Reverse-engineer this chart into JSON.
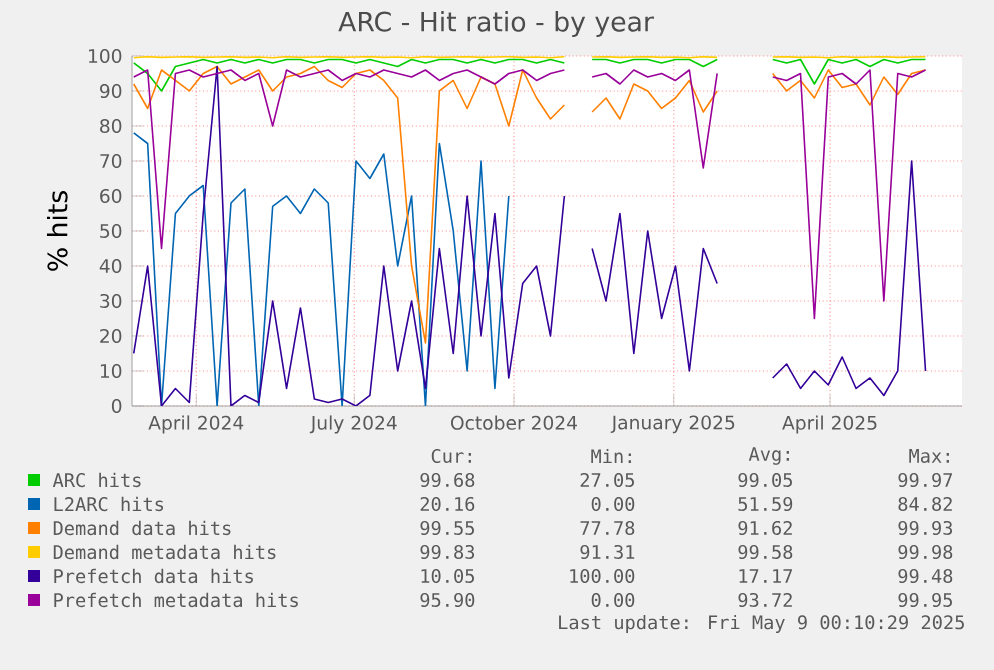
{
  "chart_data": {
    "type": "line",
    "title": "ARC - Hit ratio - by year",
    "ylabel": "% hits",
    "x": [
      "2024-02-25",
      "2024-03-04",
      "2024-03-12",
      "2024-03-20",
      "2024-03-28",
      "2024-04-05",
      "2024-04-13",
      "2024-04-21",
      "2024-04-29",
      "2024-05-07",
      "2024-05-15",
      "2024-05-23",
      "2024-05-31",
      "2024-06-08",
      "2024-06-16",
      "2024-06-24",
      "2024-07-02",
      "2024-07-10",
      "2024-07-18",
      "2024-07-26",
      "2024-08-03",
      "2024-08-11",
      "2024-08-19",
      "2024-08-27",
      "2024-09-04",
      "2024-09-12",
      "2024-09-20",
      "2024-09-28",
      "2024-10-06",
      "2024-10-14",
      "2024-10-22",
      "2024-10-30",
      "2024-11-07",
      "2024-11-15",
      "2024-11-23",
      "2024-12-01",
      "2024-12-09",
      "2024-12-17",
      "2024-12-25",
      "2025-01-02",
      "2025-01-10",
      "2025-01-18",
      "2025-01-26",
      "2025-02-03",
      "2025-02-11",
      "2025-02-19",
      "2025-02-27",
      "2025-03-07",
      "2025-03-15",
      "2025-03-23",
      "2025-03-31",
      "2025-04-08",
      "2025-04-16",
      "2025-04-24",
      "2025-05-02",
      "2025-05-10",
      "2025-05-18",
      "2025-05-26"
    ],
    "series": [
      {
        "name": "ARC hits",
        "color": "#00cc00",
        "values": [
          98,
          95,
          90,
          97,
          98,
          99,
          98,
          99,
          98,
          99,
          98,
          99,
          99,
          98,
          99,
          99,
          98,
          99,
          98,
          97,
          99,
          98,
          99,
          99,
          98,
          99,
          98,
          99,
          99,
          98,
          99,
          98,
          null,
          99,
          99,
          98,
          99,
          99,
          98,
          99,
          99,
          97,
          99,
          null,
          null,
          null,
          99,
          98,
          99,
          92,
          99,
          98,
          99,
          97,
          99,
          98,
          99,
          99
        ]
      },
      {
        "name": "L2ARC hits",
        "color": "#0066b3",
        "values": [
          78,
          75,
          0,
          55,
          60,
          63,
          0,
          58,
          62,
          0,
          57,
          60,
          55,
          62,
          58,
          0,
          70,
          65,
          72,
          40,
          60,
          0,
          75,
          50,
          10,
          70,
          5,
          60,
          null,
          null,
          null,
          null,
          null,
          null,
          null,
          null,
          null,
          null,
          null,
          null,
          null,
          null,
          null,
          null,
          null,
          null,
          null,
          null,
          null,
          null,
          null,
          null,
          null,
          null,
          null,
          null,
          null,
          null
        ]
      },
      {
        "name": "Demand data hits",
        "color": "#ff8000",
        "values": [
          92,
          85,
          96,
          93,
          90,
          95,
          97,
          92,
          94,
          96,
          90,
          94,
          95,
          97,
          93,
          91,
          95,
          96,
          93,
          88,
          40,
          18,
          90,
          93,
          85,
          94,
          92,
          80,
          96,
          88,
          82,
          86,
          null,
          84,
          88,
          82,
          92,
          90,
          85,
          88,
          93,
          84,
          90,
          null,
          null,
          null,
          95,
          90,
          93,
          88,
          96,
          91,
          92,
          86,
          94,
          89,
          95,
          96
        ]
      },
      {
        "name": "Demand metadata hits",
        "color": "#ffcc00",
        "values": [
          99.5,
          99.8,
          99.6,
          99.7,
          99.8,
          99.6,
          99.7,
          99.8,
          99.6,
          99.7,
          99.5,
          99.8,
          99.6,
          99.7,
          99.8,
          99.6,
          99.7,
          99.8,
          99.6,
          99.7,
          99.5,
          99.8,
          99.6,
          99.7,
          99.8,
          99.6,
          99.7,
          99.8,
          99.6,
          99.7,
          99.5,
          99.8,
          null,
          99.7,
          99.8,
          99.6,
          99.7,
          99.8,
          99.6,
          99.7,
          99.5,
          99.8,
          99.6,
          null,
          null,
          null,
          99.7,
          99.8,
          99.6,
          99.7,
          99.5,
          99.8,
          99.6,
          99.7,
          99.8,
          99.6,
          99.7,
          99.8
        ]
      },
      {
        "name": "Prefetch data hits",
        "color": "#330099",
        "values": [
          15,
          40,
          0,
          5,
          1,
          55,
          97,
          0,
          3,
          1,
          30,
          5,
          28,
          2,
          1,
          2,
          0,
          3,
          40,
          10,
          30,
          5,
          45,
          15,
          60,
          20,
          55,
          8,
          35,
          40,
          20,
          60,
          null,
          45,
          30,
          55,
          15,
          50,
          25,
          40,
          10,
          45,
          35,
          null,
          null,
          null,
          8,
          12,
          5,
          10,
          6,
          14,
          5,
          8,
          3,
          10,
          70,
          10
        ]
      },
      {
        "name": "Prefetch metadata hits",
        "color": "#990099",
        "values": [
          94,
          96,
          45,
          95,
          96,
          94,
          95,
          96,
          93,
          95,
          80,
          96,
          94,
          95,
          96,
          93,
          95,
          94,
          96,
          95,
          94,
          96,
          93,
          95,
          96,
          94,
          92,
          95,
          96,
          93,
          95,
          96,
          null,
          94,
          95,
          92,
          96,
          94,
          95,
          93,
          96,
          68,
          95,
          null,
          null,
          null,
          94,
          93,
          95,
          25,
          94,
          95,
          92,
          96,
          30,
          95,
          94,
          96
        ]
      }
    ],
    "xlim": [
      "2024-02-24",
      "2025-06-16"
    ],
    "xticks": [
      {
        "value": "2024-04-01",
        "label": "April 2024"
      },
      {
        "value": "2024-07-01",
        "label": "July 2024"
      },
      {
        "value": "2024-10-01",
        "label": "October 2024"
      },
      {
        "value": "2025-01-01",
        "label": "January 2025"
      },
      {
        "value": "2025-04-01",
        "label": "April 2025"
      }
    ],
    "ylim": [
      0,
      100
    ],
    "yticks": [
      0,
      10,
      20,
      30,
      40,
      50,
      60,
      70,
      80,
      90,
      100
    ],
    "grid": true,
    "legend": "bottom",
    "marker": "none",
    "line_style": "solid",
    "annotations": [
      "Cur:",
      "Min:",
      "Avg:",
      "Max:",
      "99.68",
      "27.05",
      "99.05",
      "99.97",
      "20.16",
      "0.00",
      "51.59",
      "84.82",
      "99.55",
      "77.78",
      "91.62",
      "99.93",
      "99.83",
      "91.31",
      "99.58",
      "99.98",
      "10.05",
      "100.00",
      "17.17",
      "99.48",
      "95.90",
      "0.00",
      "93.72",
      "99.95",
      "Last update: Fri May 9 00:10:29 2025"
    ]
  }
}
